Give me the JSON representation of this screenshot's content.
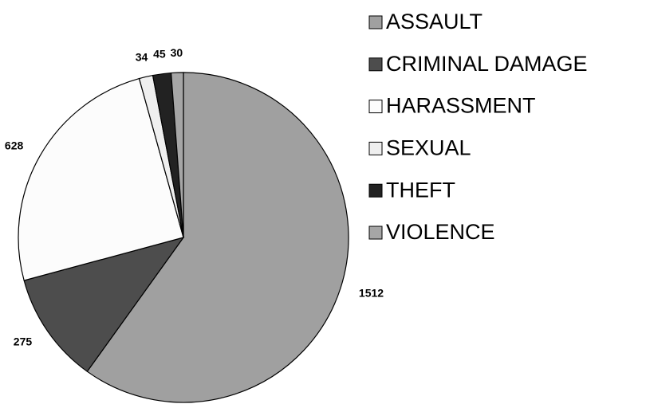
{
  "chart_data": {
    "type": "pie",
    "categories": [
      "ASSAULT",
      "CRIMINAL DAMAGE",
      "HARASSMENT",
      "SEXUAL",
      "THEFT",
      "VIOLENCE"
    ],
    "values": [
      1512,
      275,
      628,
      34,
      45,
      30
    ],
    "colors": [
      "#a0a0a0",
      "#4d4d4d",
      "#fcfcfc",
      "#efefef",
      "#222222",
      "#a6a6a6"
    ],
    "legend": "right"
  }
}
